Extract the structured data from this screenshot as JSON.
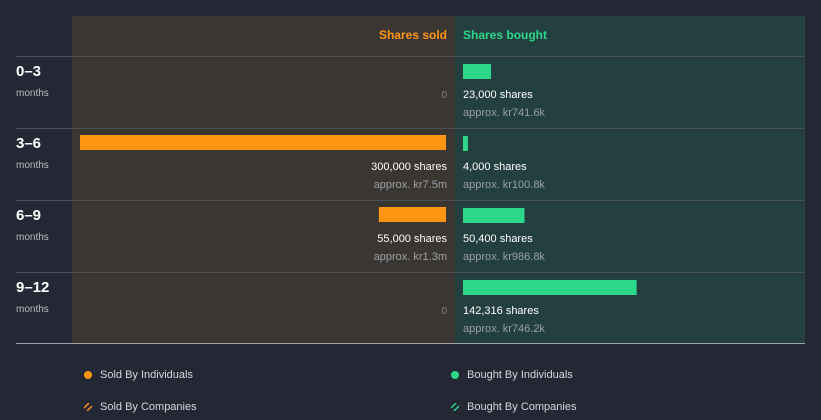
{
  "chart_data": {
    "type": "bar",
    "orientation": "horizontal-diverging",
    "headers": {
      "sold": "Shares sold",
      "bought": "Shares bought"
    },
    "categories": [
      {
        "range": "0–3",
        "unit": "months"
      },
      {
        "range": "3–6",
        "unit": "months"
      },
      {
        "range": "6–9",
        "unit": "months"
      },
      {
        "range": "9–12",
        "unit": "months"
      }
    ],
    "series": [
      {
        "name": "Shares sold",
        "values": [
          0,
          300000,
          55000,
          0
        ],
        "labels": [
          "0",
          "300,000 shares",
          "55,000 shares",
          "0"
        ],
        "approx": [
          "",
          "approx. kr7.5m",
          "approx. kr1.3m",
          ""
        ]
      },
      {
        "name": "Shares bought",
        "values": [
          23000,
          4000,
          50400,
          142316
        ],
        "labels": [
          "23,000 shares",
          "4,000 shares",
          "50,400 shares",
          "142,316 shares"
        ],
        "approx": [
          "approx. kr741.6k",
          "approx. kr100.8k",
          "approx. kr986.8k",
          "approx. kr746.2k"
        ]
      }
    ],
    "colors": {
      "sold": "#ff9412",
      "bought": "#2ed88a",
      "sold_panel": "#3a3632",
      "bought_panel": "#233f40"
    }
  },
  "legend": [
    {
      "label": "Sold By Individuals",
      "icon": "dot",
      "color": "#ff9412"
    },
    {
      "label": "Bought By Individuals",
      "icon": "dot",
      "color": "#2ed88a"
    },
    {
      "label": "Sold By Companies",
      "icon": "hatch",
      "color": "#ff9412"
    },
    {
      "label": "Bought By Companies",
      "icon": "hatch",
      "color": "#2ed88a"
    }
  ]
}
